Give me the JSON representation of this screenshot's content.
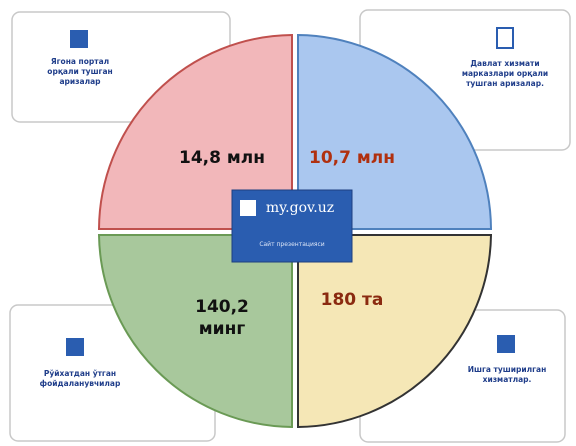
{
  "boxes": [
    {
      "lines": [
        "Ягона портал",
        "орқали тушган",
        "аризалар"
      ]
    },
    {
      "lines": [
        "Давлат хизмати",
        "марказлари орқали",
        "тушган аризалар."
      ]
    },
    {
      "lines": [
        "Рўйхатдан ўтган",
        "фойдаланувчилар"
      ]
    },
    {
      "lines": [
        "Ишга туширилган",
        "хизматлар."
      ]
    }
  ],
  "quadrants": [
    {
      "lines": [
        "14,8 млн"
      ]
    },
    {
      "lines": [
        "10,7 млн"
      ]
    },
    {
      "lines": [
        "140,2",
        "минг"
      ]
    },
    {
      "lines": [
        "180 та"
      ]
    }
  ],
  "center": {
    "site": "my.gov.uz",
    "caption": "Сайт презентацияси"
  }
}
